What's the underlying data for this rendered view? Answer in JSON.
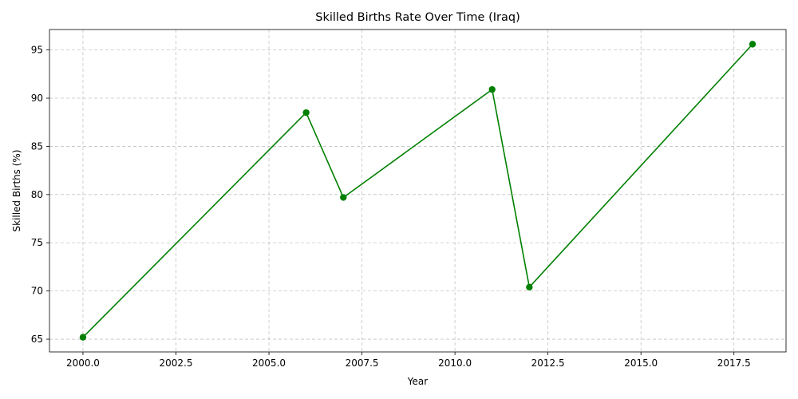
{
  "chart_data": {
    "type": "line",
    "title": "Skilled Births Rate Over Time (Iraq)",
    "xlabel": "Year",
    "ylabel": "Skilled Births (%)",
    "xlim": [
      1999.1,
      2018.9
    ],
    "ylim": [
      63.68,
      97.12
    ],
    "xticks": [
      2000.0,
      2002.5,
      2005.0,
      2007.5,
      2010.0,
      2012.5,
      2015.0,
      2017.5
    ],
    "xtick_labels": [
      "2000.0",
      "2002.5",
      "2005.0",
      "2007.5",
      "2010.0",
      "2012.5",
      "2015.0",
      "2017.5"
    ],
    "yticks": [
      65,
      70,
      75,
      80,
      85,
      90,
      95
    ],
    "ytick_labels": [
      "65",
      "70",
      "75",
      "80",
      "85",
      "90",
      "95"
    ],
    "grid": true,
    "series": [
      {
        "x": [
          2000,
          2006,
          2007,
          2011,
          2012,
          2018
        ],
        "y": [
          65.2,
          88.5,
          79.7,
          90.9,
          70.4,
          95.6
        ],
        "color": "#008000",
        "marker": "circle"
      }
    ]
  }
}
